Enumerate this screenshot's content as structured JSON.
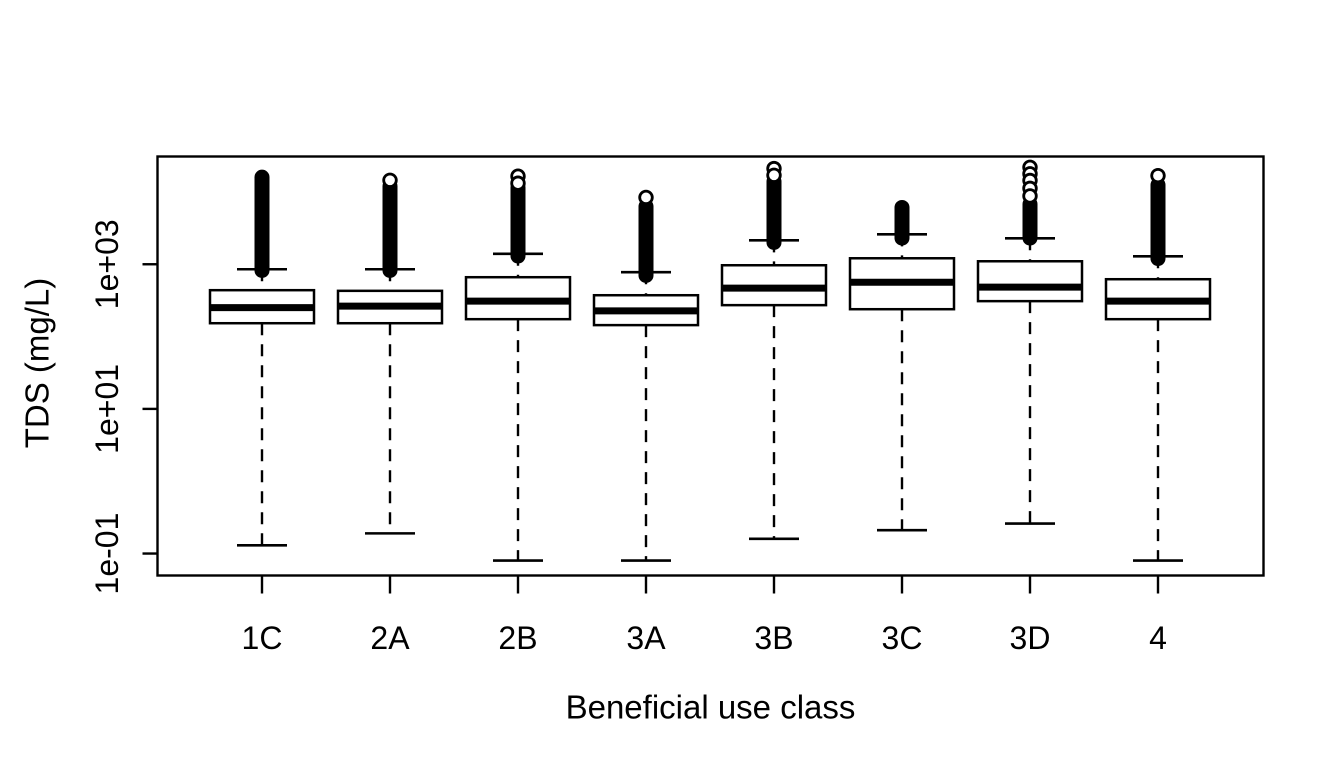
{
  "figure": {
    "background": "#ffffff",
    "ink": "#000000"
  },
  "chart_data": {
    "type": "boxplot",
    "title": "",
    "xlabel": "Beneficial use class",
    "ylabel": "TDS (mg/L)",
    "y_scale": "log10",
    "y_range": [
      0.0497,
      30900
    ],
    "grid": false,
    "y_ticks": [
      {
        "label": "1e-01",
        "value": 0.1
      },
      {
        "label": "1e+01",
        "value": 10
      },
      {
        "label": "1e+03",
        "value": 1000
      }
    ],
    "categories": [
      "1C",
      "2A",
      "2B",
      "3A",
      "3B",
      "3C",
      "3D",
      "4"
    ],
    "boxes": [
      {
        "class": "1C",
        "whisker_low": 0.13,
        "q1": 153,
        "median": 251,
        "q3": 438,
        "whisker_high": 853,
        "outlier_column": [
          820,
          16000
        ],
        "outlier_circles": []
      },
      {
        "class": "2A",
        "whisker_low": 0.19,
        "q1": 153,
        "median": 264,
        "q3": 429,
        "whisker_high": 853,
        "outlier_column": [
          820,
          12000
        ],
        "outlier_circles": [
          14500
        ]
      },
      {
        "class": "2B",
        "whisker_low": 0.08,
        "q1": 174,
        "median": 309,
        "q3": 662,
        "whisker_high": 1396,
        "outlier_column": [
          1300,
          11500
        ],
        "outlier_circles": [
          16500,
          13200
        ]
      },
      {
        "class": "3A",
        "whisker_low": 0.08,
        "q1": 144,
        "median": 227,
        "q3": 373,
        "whisker_high": 776,
        "outlier_column": [
          700,
          6300
        ],
        "outlier_circles": [
          8400
        ]
      },
      {
        "class": "3B",
        "whisker_low": 0.16,
        "q1": 272,
        "median": 467,
        "q3": 969,
        "whisker_high": 2143,
        "outlier_column": [
          2000,
          14000
        ],
        "outlier_circles": [
          21000,
          17000
        ]
      },
      {
        "class": "3C",
        "whisker_low": 0.21,
        "q1": 239,
        "median": 565,
        "q3": 1210,
        "whisker_high": 2594,
        "outlier_column": [
          2300,
          6100
        ],
        "outlier_circles": []
      },
      {
        "class": "3D",
        "whisker_low": 0.26,
        "q1": 309,
        "median": 482,
        "q3": 1100,
        "whisker_high": 2286,
        "outlier_column": [
          2300,
          6800
        ],
        "outlier_circles": [
          21900,
          17800,
          14400,
          11200,
          8800
        ]
      },
      {
        "class": "4",
        "whisker_low": 0.08,
        "q1": 174,
        "median": 309,
        "q3": 621,
        "whisker_high": 1289,
        "outlier_column": [
          1200,
          12500
        ],
        "outlier_circles": [
          16800
        ]
      }
    ]
  }
}
